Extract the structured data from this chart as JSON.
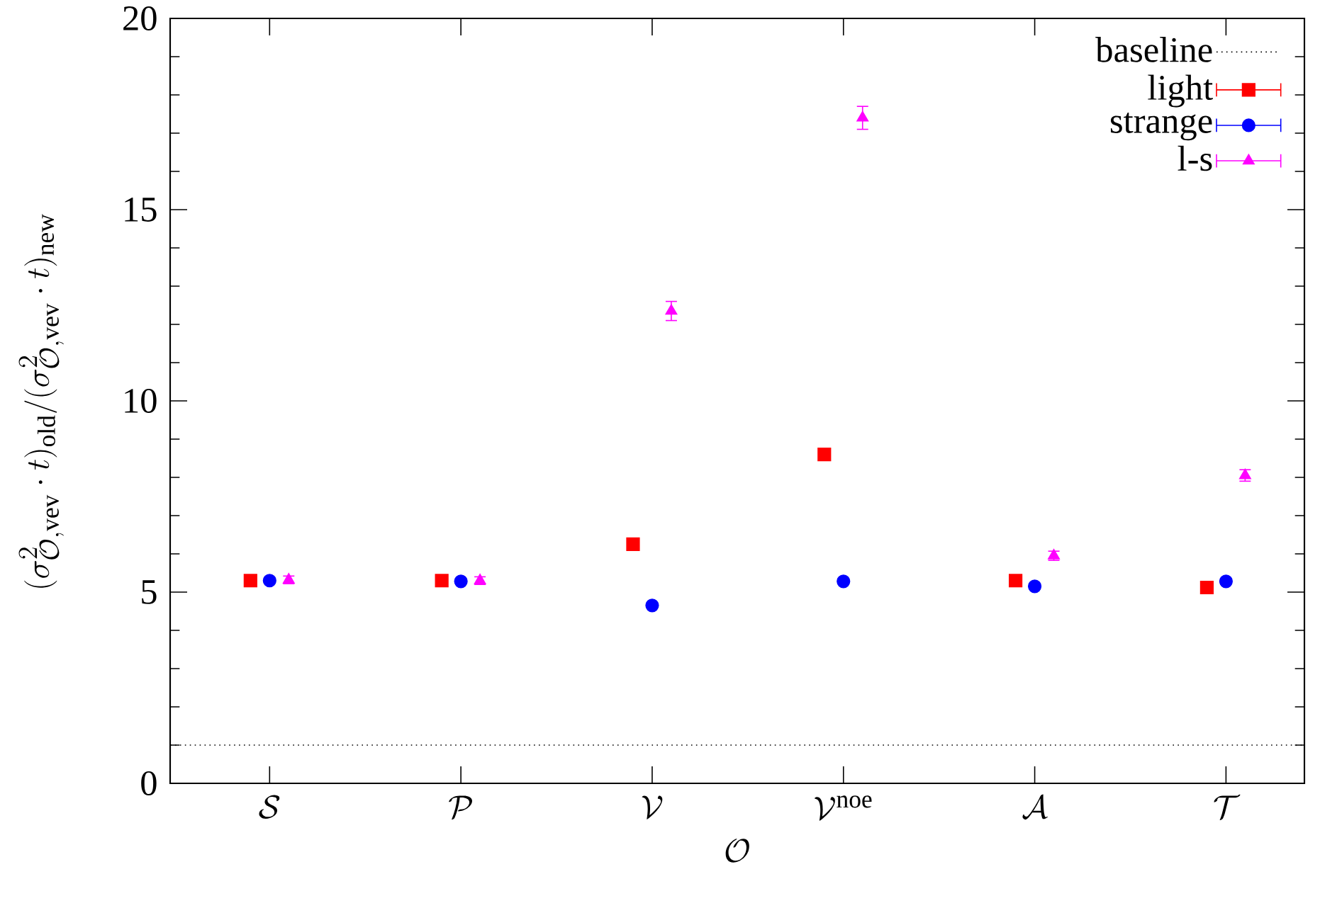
{
  "chart_data": {
    "type": "scatter",
    "xlabel": "\\mathcal{O}",
    "ylabel": "(\\sigma^2_{\\mathcal{O},\\mathrm{vev}}\\cdot t)_{\\mathrm{old}}/(\\sigma^2_{\\mathcal{O},\\mathrm{vev}}\\cdot t)_{\\mathrm{new}}",
    "categories": [
      "\\mathcal{S}",
      "\\mathcal{P}",
      "\\mathcal{V}",
      "\\mathcal{V}^{\\mathrm{noe}}",
      "\\mathcal{A}",
      "\\mathcal{T}"
    ],
    "series": [
      {
        "name": "light",
        "color": "#ff0000",
        "marker": "square",
        "values": [
          5.3,
          5.3,
          6.25,
          8.6,
          5.3,
          5.12
        ],
        "errors": [
          0.1,
          0.1,
          0.1,
          0.12,
          0.1,
          0.1
        ]
      },
      {
        "name": "strange",
        "color": "#0000ff",
        "marker": "circle",
        "values": [
          5.3,
          5.28,
          4.65,
          5.28,
          5.15,
          5.28
        ],
        "errors": [
          0.08,
          0.08,
          0.08,
          0.08,
          0.08,
          0.08
        ]
      },
      {
        "name": "l-s",
        "color": "#ff00ff",
        "marker": "triangle",
        "values": [
          5.32,
          5.3,
          12.35,
          17.4,
          5.95,
          8.05
        ],
        "errors": [
          0.1,
          0.1,
          0.25,
          0.3,
          0.12,
          0.15
        ]
      }
    ],
    "ref_lines": [
      {
        "axis": "y",
        "value": 1,
        "label": "baseline",
        "color": "#000000",
        "line_style": "dotted"
      }
    ],
    "ylim": [
      0,
      20
    ],
    "yticks": [
      0,
      5,
      10,
      15,
      20
    ],
    "grid": false,
    "legend": "top right"
  }
}
